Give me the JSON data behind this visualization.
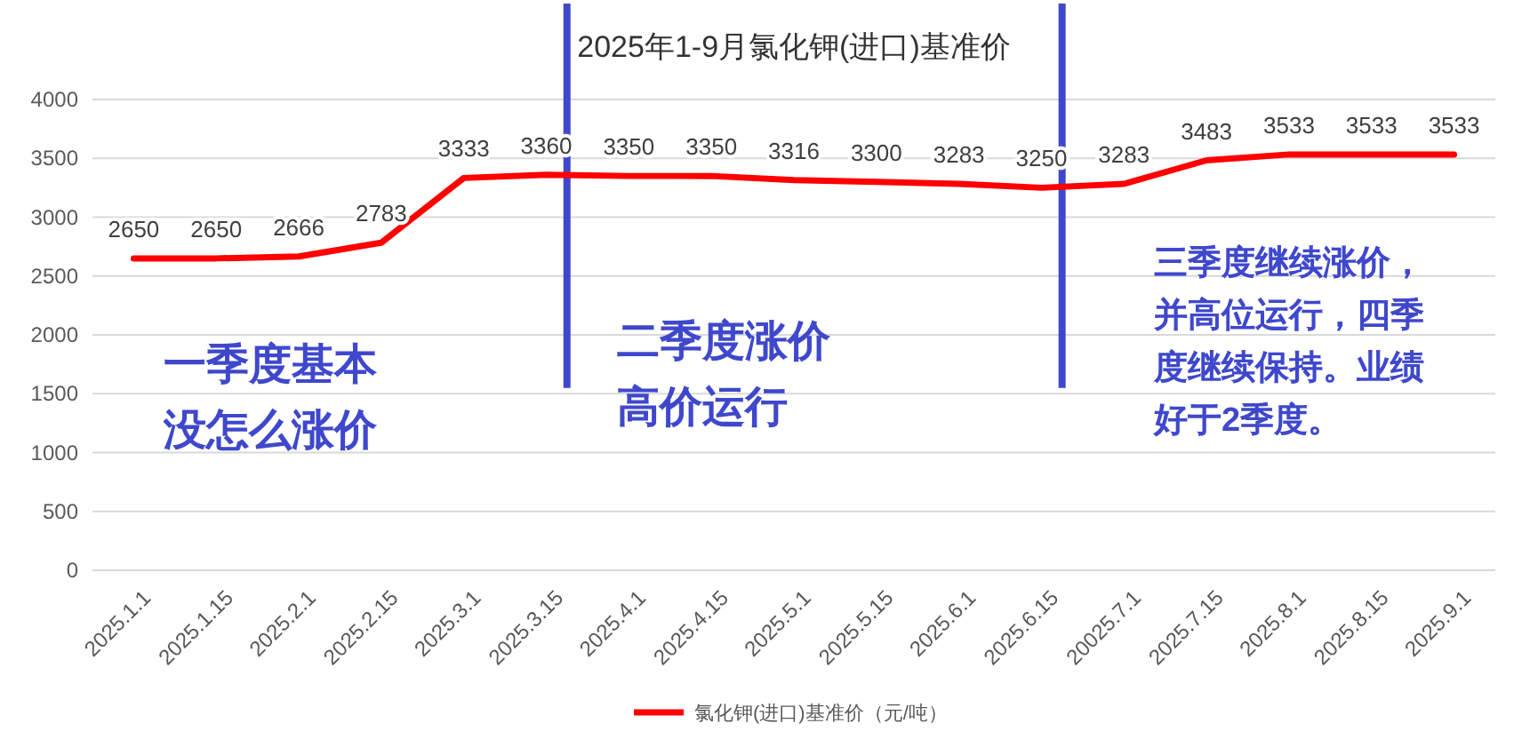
{
  "chart_data": {
    "type": "line",
    "title": "2025年1-9月氯化钾(进口)基准价",
    "categories": [
      "2025.1.1",
      "2025.1.15",
      "2025.2.1",
      "2025.2.15",
      "2025.3.1",
      "2025.3.15",
      "2025.4.1",
      "2025.4.15",
      "2025.5.1",
      "2025.5.15",
      "2025.6.1",
      "2025.6.15",
      "20025.7.1",
      "2025.7.15",
      "2025.8.1",
      "2025.8.15",
      "2025.9.1"
    ],
    "series": [
      {
        "name": "氯化钾(进口)基准价（元/吨）",
        "color": "#ff0000",
        "values": [
          2650,
          2650,
          2666,
          2783,
          3333,
          3360,
          3350,
          3350,
          3316,
          3300,
          3283,
          3250,
          3283,
          3483,
          3533,
          3533,
          3533
        ]
      }
    ],
    "ylim": [
      0,
      4000
    ],
    "yticks": [
      0,
      500,
      1000,
      1500,
      2000,
      2500,
      3000,
      3500,
      4000
    ],
    "grid": "y",
    "legend": "bottom",
    "data_labels": true,
    "marker": "none",
    "line_style": "solid",
    "ref_lines": [
      {
        "axis": "x",
        "value": "2025.3.15",
        "color": "#3f48cc"
      },
      {
        "axis": "x",
        "value": "2025.6.15",
        "color": "#3f48cc"
      }
    ],
    "annotations": [
      "一季度基本没怎么涨价",
      "二季度涨价高价运行",
      "三季度继续涨价，并高位运行，四季度继续保持。业绩好于2季度。"
    ]
  }
}
